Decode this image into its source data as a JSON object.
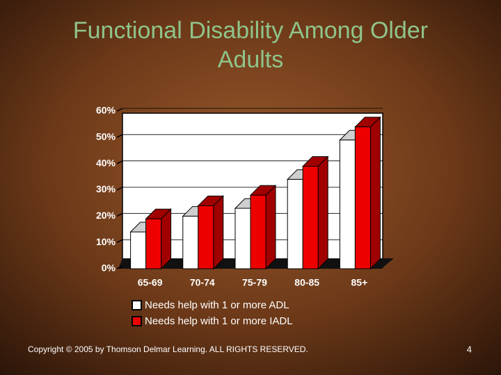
{
  "chart_data": {
    "type": "bar3d",
    "title": "Functional Disability Among Older Adults",
    "categories": [
      "65-69",
      "70-74",
      "75-79",
      "80-85",
      "85+"
    ],
    "series": [
      {
        "name": "Needs help with 1 or more ADL",
        "color": "#ffffff",
        "values": [
          14,
          20,
          23,
          34,
          49
        ]
      },
      {
        "name": "Needs help with 1 or more IADL",
        "color": "#ee0000",
        "values": [
          19,
          24,
          28,
          39,
          54
        ]
      }
    ],
    "ylim": [
      0,
      60
    ],
    "yticks": [
      {
        "value": 0,
        "label": "0%"
      },
      {
        "value": 10,
        "label": "10%"
      },
      {
        "value": 20,
        "label": "20%"
      },
      {
        "value": 30,
        "label": "30%"
      },
      {
        "value": 40,
        "label": "40%"
      },
      {
        "value": 50,
        "label": "50%"
      },
      {
        "value": 60,
        "label": "60%"
      }
    ],
    "grid": true
  },
  "footer": {
    "copyright": "Copyright © 2005 by Thomson Delmar Learning. ALL RIGHTS RESERVED.",
    "page_number": "4"
  }
}
